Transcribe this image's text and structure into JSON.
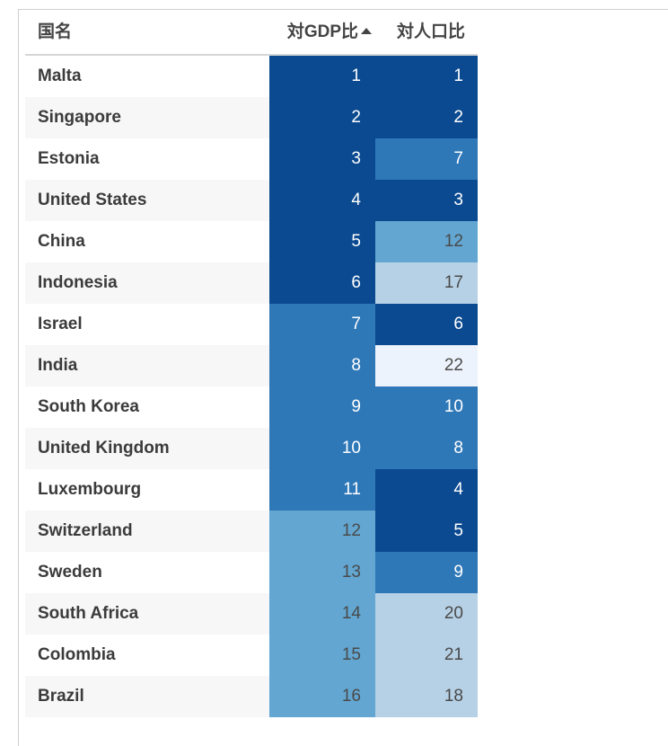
{
  "header": {
    "name_col": "国名",
    "gdp_col": "対GDP比",
    "pop_col": "対人口比"
  },
  "chart_data": {
    "type": "table",
    "columns": [
      "国名",
      "対GDP比",
      "対人口比"
    ],
    "sort": {
      "column": "対GDP比",
      "direction": "ascending"
    },
    "rows": [
      {
        "country": "Malta",
        "gdp_rank": 1,
        "pop_rank": 1
      },
      {
        "country": "Singapore",
        "gdp_rank": 2,
        "pop_rank": 2
      },
      {
        "country": "Estonia",
        "gdp_rank": 3,
        "pop_rank": 7
      },
      {
        "country": "United States",
        "gdp_rank": 4,
        "pop_rank": 3
      },
      {
        "country": "China",
        "gdp_rank": 5,
        "pop_rank": 12
      },
      {
        "country": "Indonesia",
        "gdp_rank": 6,
        "pop_rank": 17
      },
      {
        "country": "Israel",
        "gdp_rank": 7,
        "pop_rank": 6
      },
      {
        "country": "India",
        "gdp_rank": 8,
        "pop_rank": 22
      },
      {
        "country": "South Korea",
        "gdp_rank": 9,
        "pop_rank": 10
      },
      {
        "country": "United Kingdom",
        "gdp_rank": 10,
        "pop_rank": 8
      },
      {
        "country": "Luxembourg",
        "gdp_rank": 11,
        "pop_rank": 4
      },
      {
        "country": "Switzerland",
        "gdp_rank": 12,
        "pop_rank": 5
      },
      {
        "country": "Sweden",
        "gdp_rank": 13,
        "pop_rank": 9
      },
      {
        "country": "South Africa",
        "gdp_rank": 14,
        "pop_rank": 20
      },
      {
        "country": "Colombia",
        "gdp_rank": 15,
        "pop_rank": 21
      },
      {
        "country": "Brazil",
        "gdp_rank": 16,
        "pop_rank": 18
      }
    ],
    "color_scale": {
      "bins": [
        {
          "max": 6,
          "color": "#0b4a90",
          "text": "#ffffff"
        },
        {
          "max": 11,
          "color": "#2f78b8",
          "text": "#ffffff"
        },
        {
          "max": 16,
          "color": "#62a6d1",
          "text": "#4a4a4a"
        },
        {
          "max": 21,
          "color": "#b6d1e6",
          "text": "#4a4a4a"
        },
        {
          "max": 99,
          "color": "#edf3fc",
          "text": "#4a4a4a"
        }
      ]
    }
  }
}
